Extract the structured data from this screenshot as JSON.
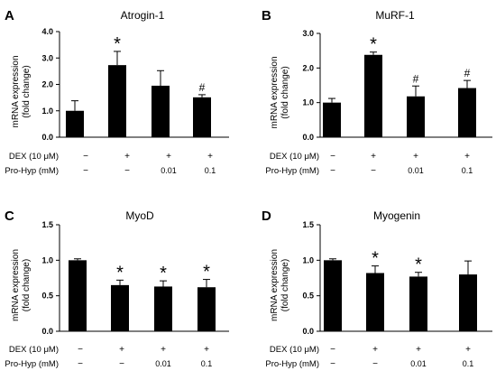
{
  "chart_data": [
    {
      "type": "bar",
      "panel_label": "A",
      "title": "Atrogin-1",
      "ylabel": "mRNA expression\n(fold change)",
      "ylim": [
        0,
        4.0
      ],
      "yticks": [
        "0.0",
        "1.0",
        "2.0",
        "3.0",
        "4.0"
      ],
      "values": [
        1.0,
        2.73,
        1.95,
        1.51
      ],
      "errors": [
        0.38,
        0.52,
        0.57,
        0.1
      ],
      "significance": [
        "",
        "*",
        "",
        "#"
      ],
      "grid": false
    },
    {
      "type": "bar",
      "panel_label": "B",
      "title": "MuRF-1",
      "ylabel": "mRNA expression\n(fold change)",
      "ylim": [
        0,
        3.0
      ],
      "yticks": [
        "0.0",
        "1.0",
        "2.0",
        "3.0"
      ],
      "values": [
        1.0,
        2.38,
        1.18,
        1.42
      ],
      "errors": [
        0.12,
        0.08,
        0.3,
        0.22
      ],
      "significance": [
        "",
        "*",
        "#",
        "#"
      ],
      "grid": false
    },
    {
      "type": "bar",
      "panel_label": "C",
      "title": "MyoD",
      "ylabel": "mRNA expression\n(fold change)",
      "ylim": [
        0,
        1.5
      ],
      "yticks": [
        "0.0",
        "0.5",
        "1.0",
        "1.5"
      ],
      "values": [
        1.0,
        0.65,
        0.63,
        0.62
      ],
      "errors": [
        0.02,
        0.07,
        0.08,
        0.11
      ],
      "significance": [
        "",
        "*",
        "*",
        "*"
      ],
      "grid": false
    },
    {
      "type": "bar",
      "panel_label": "D",
      "title": "Myogenin",
      "ylabel": "mRNA expression\n(fold change)",
      "ylim": [
        0,
        1.5
      ],
      "yticks": [
        "0.0",
        "0.5",
        "1.0",
        "1.5"
      ],
      "values": [
        1.0,
        0.82,
        0.77,
        0.8
      ],
      "errors": [
        0.02,
        0.1,
        0.06,
        0.19
      ],
      "significance": [
        "",
        "*",
        "*",
        ""
      ],
      "grid": false
    }
  ],
  "conditions": {
    "dex_label": "DEX (10 μM)",
    "prohyp_label": "Pro-Hyp (mM)",
    "dex": [
      "−",
      "+",
      "+",
      "+"
    ],
    "prohyp": [
      "−",
      "−",
      "0.01",
      "0.1"
    ]
  },
  "colors": {
    "bar": "#000000",
    "axis": "#000000",
    "background": "#ffffff"
  }
}
